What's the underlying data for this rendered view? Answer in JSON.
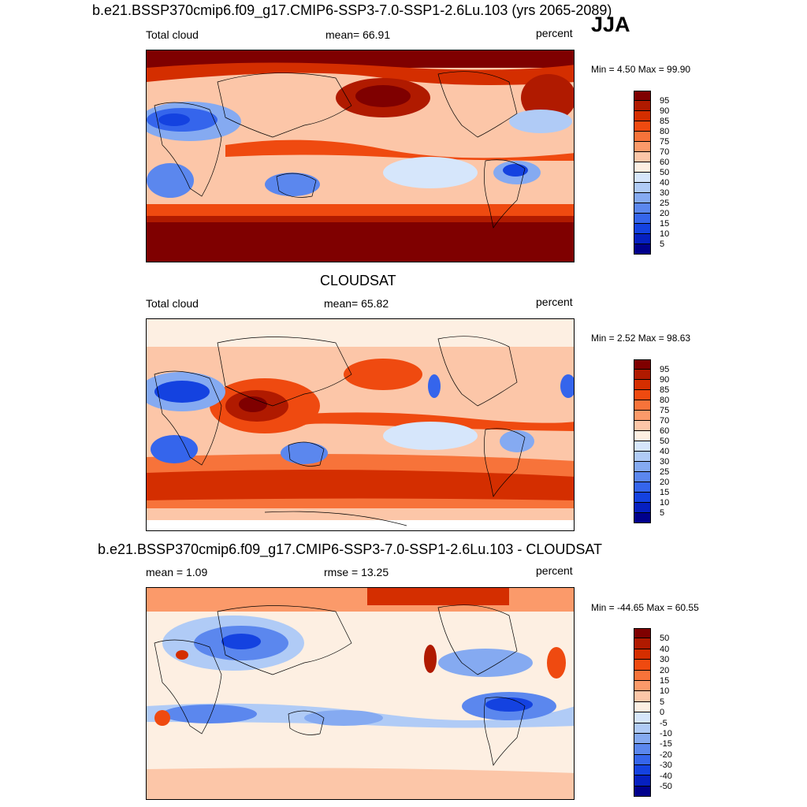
{
  "season": "JJA",
  "panels": [
    {
      "title": "b.e21.BSSP370cmip6.f09_g17.CMIP6-SSP3-7.0-SSP1-2.6Lu.103 (yrs 2065-2089)",
      "left_label": "Total cloud",
      "center_label": "mean=  66.91",
      "units": "percent",
      "minmax": "Min =   4.50 Max =  99.90",
      "levels": [
        "95",
        "90",
        "85",
        "80",
        "75",
        "70",
        "60",
        "50",
        "40",
        "30",
        "25",
        "20",
        "15",
        "10",
        "5"
      ]
    },
    {
      "title": "CLOUDSAT",
      "left_label": "Total cloud",
      "center_label": "mean=  65.82",
      "units": "percent",
      "minmax": "Min =   2.52 Max =  98.63",
      "levels": [
        "95",
        "90",
        "85",
        "80",
        "75",
        "70",
        "60",
        "50",
        "40",
        "30",
        "25",
        "20",
        "15",
        "10",
        "5"
      ]
    },
    {
      "title": "b.e21.BSSP370cmip6.f09_g17.CMIP6-SSP3-7.0-SSP1-2.6Lu.103 - CLOUDSAT",
      "left_label": "mean =   1.09",
      "center_label": "rmse =  13.25",
      "units": "percent",
      "minmax": "Min = -44.65 Max =  60.55",
      "levels": [
        "50",
        "40",
        "30",
        "20",
        "15",
        "10",
        "5",
        "0",
        "-5",
        "-10",
        "-15",
        "-20",
        "-30",
        "-40",
        "-50"
      ]
    }
  ],
  "colors": {
    "abs_scale": [
      "#7f0000",
      "#b01a00",
      "#d42e00",
      "#ef4a10",
      "#f7733a",
      "#fb9a6a",
      "#fcc6a8",
      "#fdefe2",
      "#d6e6fb",
      "#b0cbf6",
      "#85aaf1",
      "#5b87ee",
      "#3565ec",
      "#1442e0",
      "#0620c0",
      "#00008c"
    ],
    "diff_scale": [
      "#7f0000",
      "#b01a00",
      "#d42e00",
      "#ef4a10",
      "#f7733a",
      "#fb9a6a",
      "#fcc6a8",
      "#fdefe2",
      "#ffffff",
      "#d6e6fb",
      "#b0cbf6",
      "#85aaf1",
      "#5b87ee",
      "#3565ec",
      "#1442e0",
      "#0620c0",
      "#00008c"
    ]
  }
}
